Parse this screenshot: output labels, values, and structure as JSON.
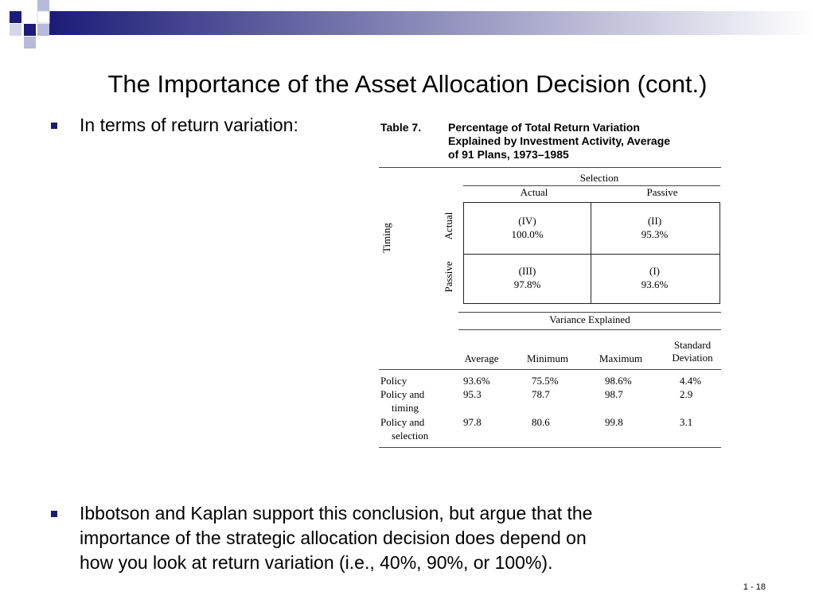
{
  "slide": {
    "title": "The Importance of the Asset Allocation Decision (cont.)",
    "bullet1": "In terms of return variation:",
    "bullet2_lines": [
      "Ibbotson and Kaplan support this conclusion, but argue that the",
      "importance of the strategic allocation decision does depend on",
      "how you look at return variation (i.e., 40%, 90%, or 100%)."
    ],
    "slide_number": "1 - 18"
  },
  "table": {
    "label": "Table  7.",
    "caption_lines": [
      "Percentage of Total Return Variation",
      "Explained by Investment Activity, Average",
      "of 91 Plans, 1973–1985"
    ],
    "selection_header": "Selection",
    "timing_header": "Timing",
    "col_actual": "Actual",
    "col_passive": "Passive",
    "row_actual": "Actual",
    "row_passive": "Passive",
    "cells": {
      "actual_actual": {
        "id": "(IV)",
        "value": "100.0%"
      },
      "actual_passive": {
        "id": "(II)",
        "value": "95.3%"
      },
      "passive_actual": {
        "id": "(III)",
        "value": "97.8%"
      },
      "passive_passive": {
        "id": "(I)",
        "value": "93.6%"
      }
    },
    "variance_header": "Variance Explained",
    "stat_headers": [
      "Average",
      "Minimum",
      "Maximum",
      "Standard",
      "Deviation"
    ],
    "rows": [
      {
        "label": [
          "Policy"
        ],
        "values": [
          "93.6%",
          "75.5%",
          "98.6%",
          "4.4%"
        ]
      },
      {
        "label": [
          "Policy and",
          "timing"
        ],
        "values": [
          "95.3",
          "78.7",
          "98.7",
          "2.9"
        ]
      },
      {
        "label": [
          "Policy and",
          "selection"
        ],
        "values": [
          "97.8",
          "80.6",
          "99.8",
          "3.1"
        ]
      }
    ]
  }
}
